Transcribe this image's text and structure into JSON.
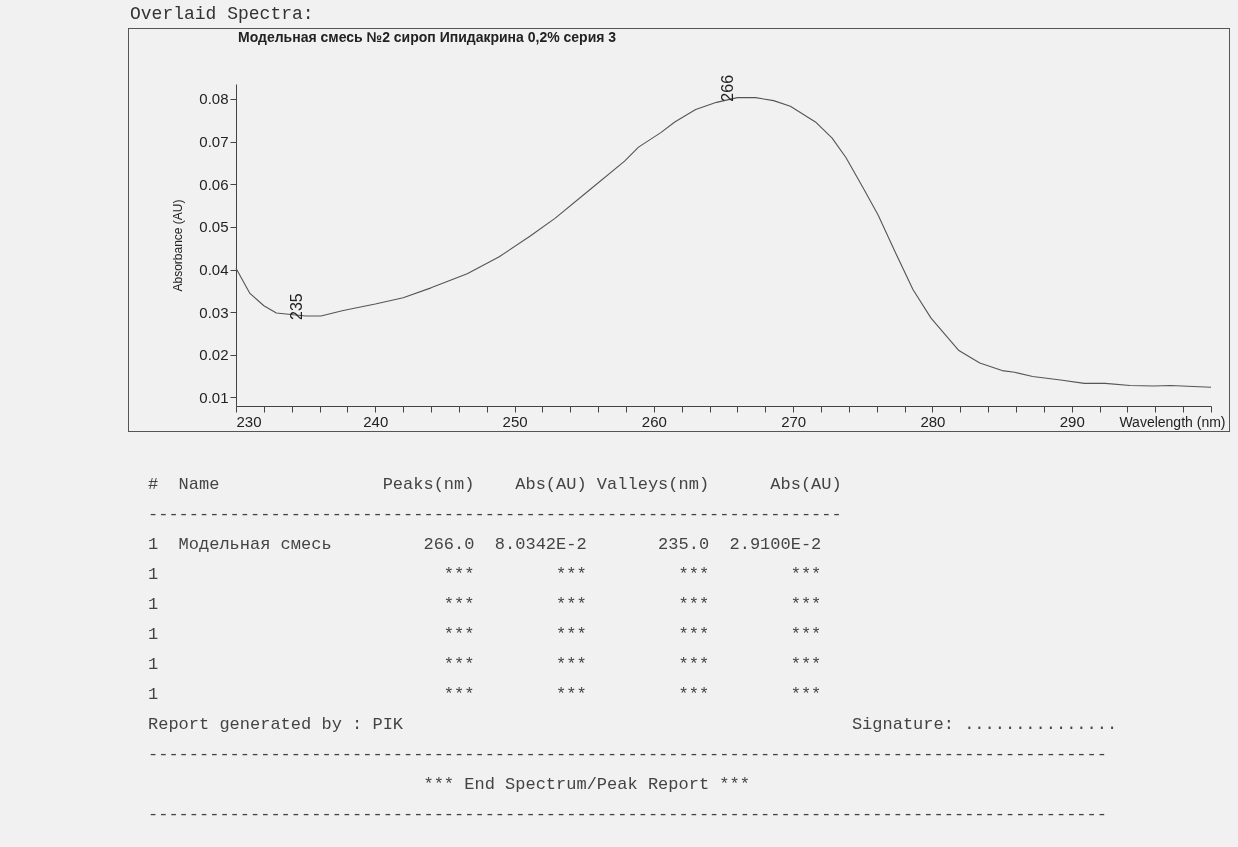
{
  "chart_data": {
    "type": "line",
    "title": "Модельная смесь №2 сироп Ипидакрина 0,2% серия 3",
    "subtitle": "Overlaid Spectra:",
    "xlabel": "Wavelength (nm)",
    "ylabel": "Absorbance (AU)",
    "x": [
      230,
      231.0,
      232.0,
      232.9,
      235.0,
      236.1,
      237.7,
      240.0,
      242.0,
      244.0,
      246.6,
      248.9,
      251.1,
      252.9,
      255.4,
      257.9,
      258.9,
      260.5,
      261.5,
      263.0,
      264.5,
      266.0,
      267.3,
      268.6,
      269.8,
      271.6,
      272.8,
      273.8,
      275.1,
      276.1,
      277.4,
      278.6,
      279.9,
      281.9,
      283.4,
      285.0,
      285.9,
      287.2,
      289.2,
      290.9,
      292.4,
      294.2,
      295.9,
      297.1,
      297.9,
      300.0
    ],
    "series": [
      {
        "color": "#555555",
        "values": [
          0.0403,
          0.0344,
          0.0315,
          0.0298,
          0.0291,
          0.0291,
          0.0304,
          0.0319,
          0.0334,
          0.0357,
          0.039,
          0.043,
          0.0478,
          0.052,
          0.0587,
          0.0654,
          0.0687,
          0.0721,
          0.0746,
          0.0775,
          0.0792,
          0.0803,
          0.0803,
          0.0796,
          0.0783,
          0.0746,
          0.0708,
          0.0662,
          0.0587,
          0.0528,
          0.0436,
          0.0353,
          0.0286,
          0.021,
          0.0181,
          0.0163,
          0.0159,
          0.0149,
          0.0141,
          0.0133,
          0.0133,
          0.0128,
          0.0127,
          0.0128,
          0.0127,
          0.0124
        ]
      }
    ],
    "xlim": [
      230,
      300
    ],
    "xticks": [
      230,
      {
        "value": 232,
        "label": null
      },
      {
        "value": 234,
        "label": null
      },
      {
        "value": 236,
        "label": null
      },
      {
        "value": 238,
        "label": null
      },
      240,
      {
        "value": 242,
        "label": null
      },
      {
        "value": 244,
        "label": null
      },
      {
        "value": 246,
        "label": null
      },
      {
        "value": 248,
        "label": null
      },
      250,
      {
        "value": 252,
        "label": null
      },
      {
        "value": 254,
        "label": null
      },
      {
        "value": 256,
        "label": null
      },
      {
        "value": 258,
        "label": null
      },
      260,
      {
        "value": 262,
        "label": null
      },
      {
        "value": 264,
        "label": null
      },
      {
        "value": 266,
        "label": null
      },
      {
        "value": 268,
        "label": null
      },
      270,
      {
        "value": 272,
        "label": null
      },
      {
        "value": 274,
        "label": null
      },
      {
        "value": 276,
        "label": null
      },
      {
        "value": 278,
        "label": null
      },
      280,
      {
        "value": 282,
        "label": null
      },
      {
        "value": 284,
        "label": null
      },
      {
        "value": 286,
        "label": null
      },
      {
        "value": 288,
        "label": null
      },
      290,
      {
        "value": 292,
        "label": null
      },
      {
        "value": 294,
        "label": null
      },
      {
        "value": 296,
        "label": null
      },
      {
        "value": 298,
        "label": null
      },
      {
        "value": 300,
        "label": null
      }
    ],
    "ylim": [
      0.008,
      0.0835
    ],
    "yticks": [
      {
        "value": 0.01,
        "label": "0.01"
      },
      {
        "value": 0.02,
        "label": "0.02"
      },
      {
        "value": 0.03,
        "label": "0.03"
      },
      {
        "value": 0.04,
        "label": "0.04"
      },
      {
        "value": 0.05,
        "label": "0.05"
      },
      {
        "value": 0.06,
        "label": "0.06"
      },
      {
        "value": 0.07,
        "label": "0.07"
      },
      {
        "value": 0.08,
        "label": "0.08"
      }
    ],
    "grid": false,
    "marker": "none",
    "line_style": "solid",
    "annotations": [
      {
        "text": "266",
        "x": 266,
        "y": 0.0803
      },
      {
        "text": "235",
        "x": 235,
        "y": 0.0291
      },
      "#  Name                Peaks(nm)    Abs(AU) Valleys(nm)      Abs(AU)",
      "--------------------------------------------------------------------",
      "1  Модельная смесь         266.0  8.0342E-2       235.0  2.9100E-2",
      "1                            ***        ***         ***        ***",
      "1                            ***        ***         ***        ***",
      "1                            ***        ***         ***        ***",
      "1                            ***        ***         ***        ***",
      "1                            ***        ***         ***        ***",
      "Report generated by : PIK                                            Signature: ...............",
      "----------------------------------------------------------------------------------------------",
      "                           *** End Spectrum/Peak Report ***",
      "----------------------------------------------------------------------------------------------"
    ]
  }
}
